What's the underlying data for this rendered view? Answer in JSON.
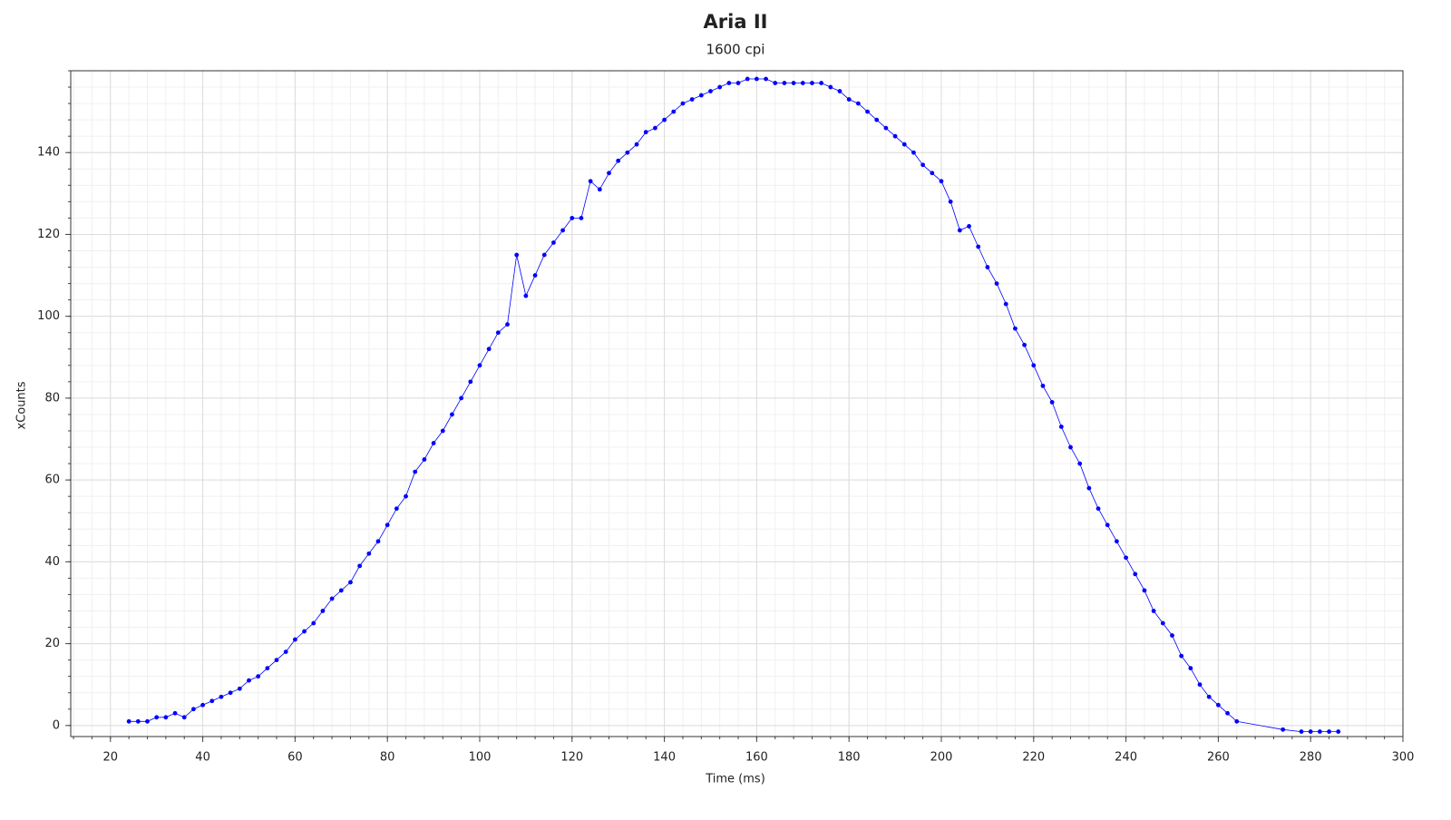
{
  "chart_data": {
    "type": "scatter",
    "title": "Aria II",
    "subtitle": "1600 cpi",
    "x_label": "Time (ms)",
    "y_label": "xCounts",
    "xlim": [
      11.4,
      300
    ],
    "ylim": [
      -2.7,
      160
    ],
    "xticks": [
      20,
      40,
      60,
      80,
      100,
      120,
      140,
      160,
      180,
      200,
      220,
      240,
      260,
      280,
      300
    ],
    "yticks": [
      0,
      20,
      40,
      60,
      80,
      100,
      120,
      140
    ],
    "grid": true,
    "x": [
      24,
      26,
      28,
      30,
      32,
      34,
      36,
      38,
      40,
      42,
      44,
      46,
      48,
      50,
      52,
      54,
      56,
      58,
      60,
      62,
      64,
      66,
      68,
      70,
      72,
      74,
      76,
      78,
      80,
      82,
      84,
      86,
      88,
      90,
      92,
      94,
      96,
      98,
      100,
      102,
      104,
      106,
      108,
      110,
      112,
      114,
      116,
      118,
      120,
      122,
      124,
      126,
      128,
      130,
      132,
      134,
      136,
      138,
      140,
      142,
      144,
      146,
      148,
      150,
      152,
      154,
      156,
      158,
      160,
      162,
      164,
      166,
      168,
      170,
      172,
      174,
      176,
      178,
      180,
      182,
      184,
      186,
      188,
      190,
      192,
      194,
      196,
      198,
      200,
      202,
      204,
      206,
      208,
      210,
      212,
      214,
      216,
      218,
      220,
      222,
      224,
      226,
      228,
      230,
      232,
      234,
      236,
      238,
      240,
      242,
      244,
      246,
      248,
      250,
      252,
      254,
      256,
      258,
      260,
      262,
      264,
      274,
      278,
      280,
      282,
      284,
      286
    ],
    "series": [
      {
        "color": "#0000ff",
        "values": [
          1,
          1,
          1,
          2,
          2,
          3,
          2,
          4,
          5,
          6,
          7,
          8,
          9,
          11,
          12,
          14,
          16,
          18,
          21,
          23,
          25,
          28,
          31,
          33,
          35,
          39,
          42,
          45,
          49,
          53,
          56,
          62,
          65,
          69,
          72,
          76,
          80,
          84,
          88,
          92,
          96,
          98,
          115,
          105,
          110,
          115,
          118,
          121,
          124,
          124,
          133,
          131,
          135,
          138,
          140,
          142,
          145,
          146,
          148,
          150,
          152,
          153,
          154,
          155,
          156,
          157,
          157,
          158,
          158,
          158,
          157,
          157,
          157,
          157,
          157,
          157,
          156,
          155,
          153,
          152,
          150,
          148,
          146,
          144,
          142,
          140,
          137,
          135,
          133,
          128,
          121,
          122,
          117,
          112,
          108,
          103,
          97,
          93,
          88,
          83,
          79,
          73,
          68,
          64,
          58,
          53,
          49,
          45,
          41,
          37,
          33,
          28,
          25,
          22,
          17,
          14,
          10,
          7,
          5,
          3,
          1,
          -1,
          -1.5,
          -1.5,
          -1.5,
          -1.5,
          -1.5
        ]
      }
    ]
  }
}
